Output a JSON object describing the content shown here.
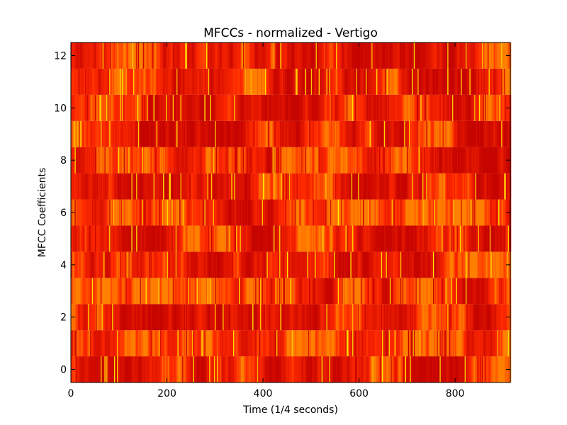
{
  "chart_data": {
    "type": "heatmap",
    "title": "MFCCs - normalized - Vertigo",
    "xlabel": "Time (1/4 seconds)",
    "ylabel": "MFCC Coefficients",
    "xlim": [
      0,
      915
    ],
    "ylim": [
      -0.5,
      12.5
    ],
    "xticks": [
      0,
      200,
      400,
      600,
      800
    ],
    "yticks": [
      0,
      2,
      4,
      6,
      8,
      10,
      12
    ],
    "rows": 13,
    "frames": 915,
    "colormap": "autumn-dark",
    "colors": {
      "low": "#c00000",
      "mid": "#ff2a00",
      "high": "#ffee00",
      "frame": "#000000"
    },
    "grid": false
  }
}
